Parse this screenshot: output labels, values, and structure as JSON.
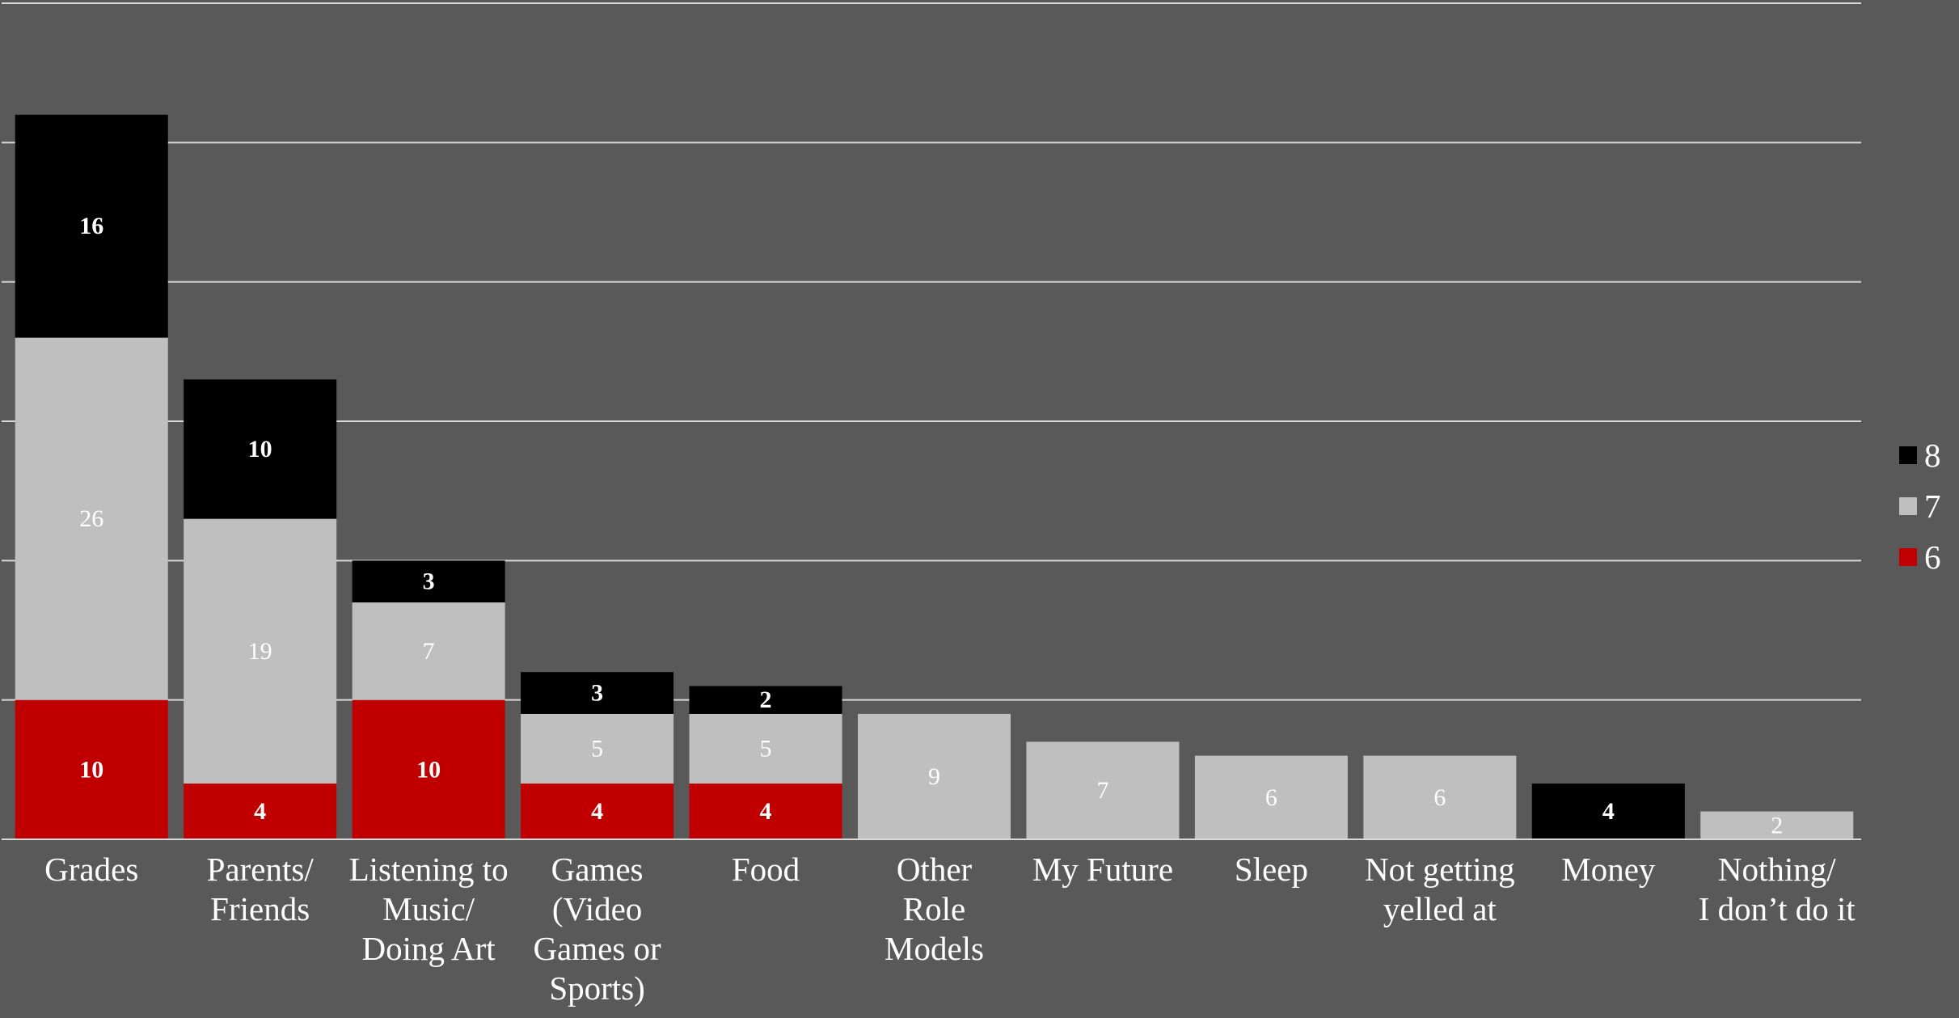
{
  "chart_data": {
    "type": "bar",
    "stacked": true,
    "title": "",
    "xlabel": "",
    "ylabel": "",
    "ylim": [
      0,
      60
    ],
    "grid": true,
    "legend_position": "right",
    "categories": [
      "Grades",
      "Parents/ Friends",
      "Listening to Music/ Doing Art",
      "Games (Video Games or Sports)",
      "Food",
      "Other Role Models",
      "My Future",
      "Sleep",
      "Not getting yelled at",
      "Money",
      "Nothing/ I don’t do it"
    ],
    "category_lines": [
      [
        "Grades"
      ],
      [
        "Parents/",
        "Friends"
      ],
      [
        "Listening to",
        "Music/",
        "Doing Art"
      ],
      [
        "Games",
        "(Video",
        "Games or",
        "Sports)"
      ],
      [
        "Food"
      ],
      [
        "Other",
        "Role",
        "Models"
      ],
      [
        "My Future"
      ],
      [
        "Sleep"
      ],
      [
        "Not getting",
        "yelled at"
      ],
      [
        "Money"
      ],
      [
        "Nothing/",
        "I don’t do it"
      ]
    ],
    "series": [
      {
        "name": "6",
        "color": "#c00000",
        "label_color": "#ffffff",
        "label_bold": true,
        "values": [
          10,
          4,
          10,
          4,
          4,
          0,
          0,
          0,
          0,
          0,
          0
        ]
      },
      {
        "name": "7",
        "color": "#bfbfbf",
        "label_color": "#ffffff",
        "label_bold": false,
        "values": [
          26,
          19,
          7,
          5,
          5,
          9,
          7,
          6,
          6,
          0,
          2
        ]
      },
      {
        "name": "8",
        "color": "#000000",
        "label_color": "#ffffff",
        "label_bold": true,
        "values": [
          16,
          10,
          3,
          3,
          2,
          0,
          0,
          0,
          0,
          4,
          0
        ]
      }
    ],
    "legend_order": [
      "8",
      "7",
      "6"
    ]
  }
}
